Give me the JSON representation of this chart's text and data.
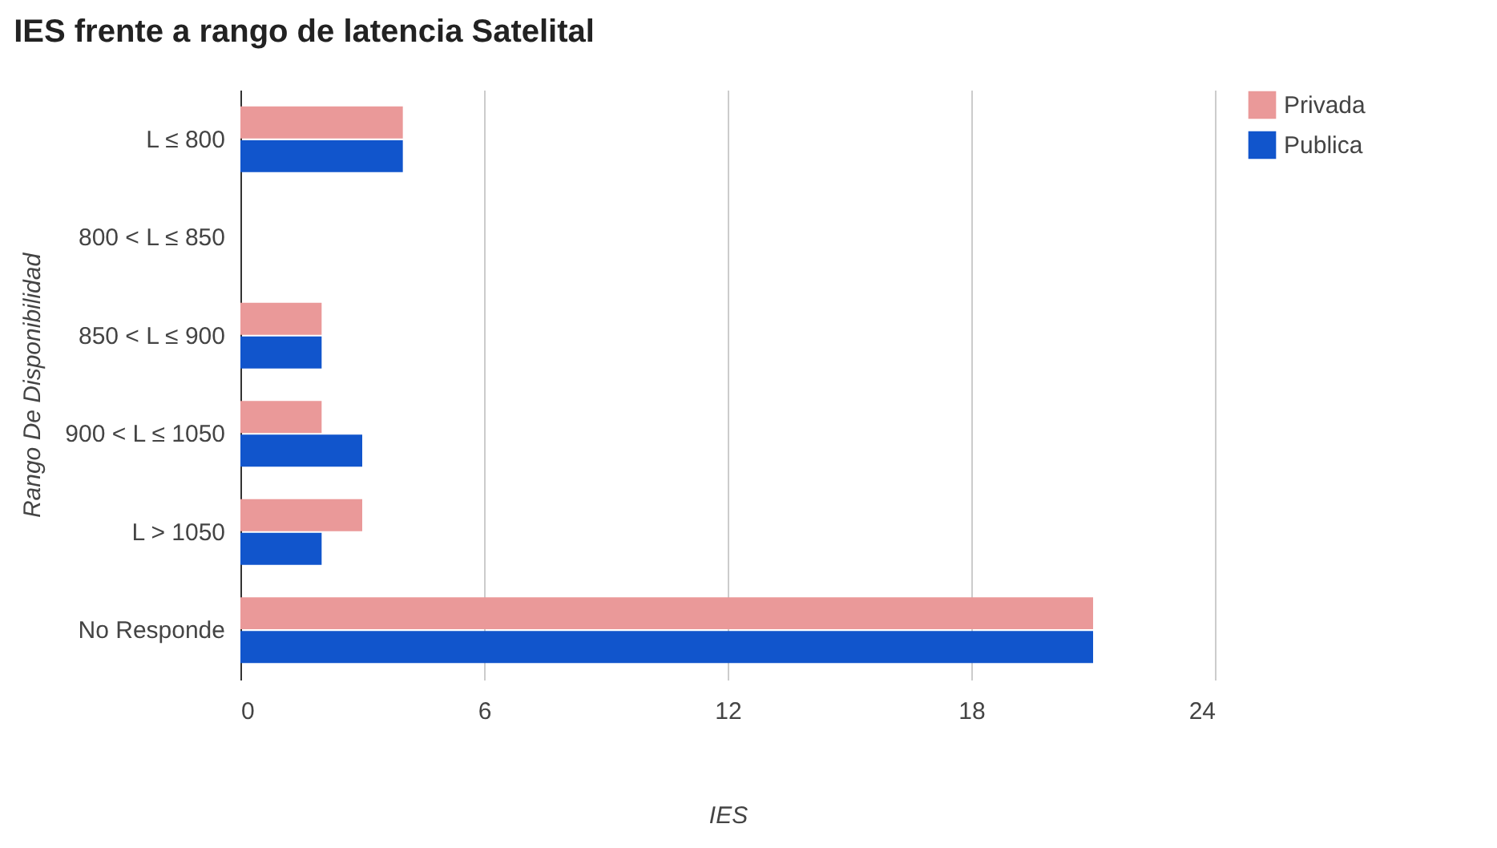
{
  "chart_data": {
    "type": "bar",
    "orientation": "horizontal",
    "title": "IES frente a rango de latencia Satelital",
    "xlabel": "IES",
    "ylabel": "Rango De Disponibilidad",
    "categories": [
      "L ≤ 800",
      "800 < L ≤ 850",
      "850 < L ≤ 900",
      "900 < L ≤ 1050",
      "L > 1050",
      "No Responde"
    ],
    "series": [
      {
        "name": "Privada",
        "color": "#ea9999",
        "values": [
          4,
          null,
          2,
          2,
          3,
          21
        ]
      },
      {
        "name": "Publica",
        "color": "#1155cc",
        "values": [
          4,
          null,
          2,
          3,
          2,
          21
        ]
      }
    ],
    "xlim": [
      0,
      24
    ],
    "xticks": [
      0,
      6,
      12,
      18,
      24
    ],
    "grid": "x",
    "legend": "top right"
  }
}
